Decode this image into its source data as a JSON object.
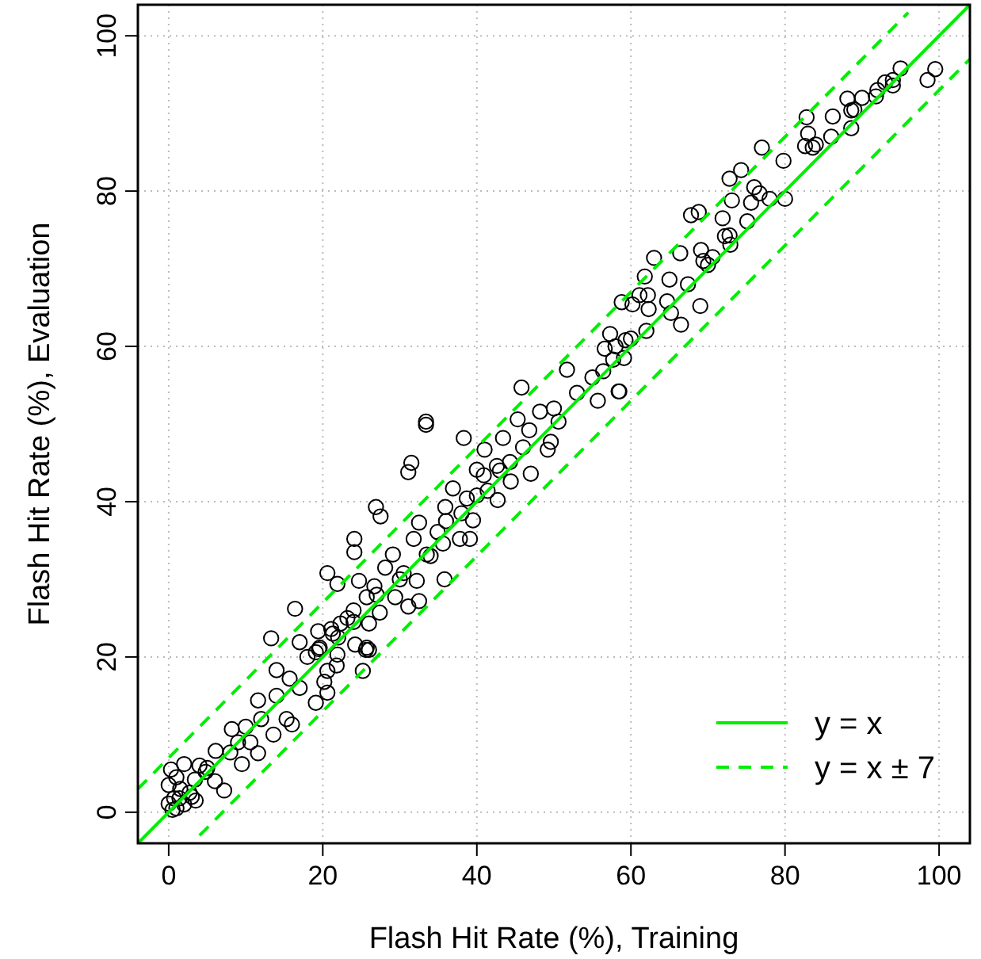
{
  "chart_data": {
    "type": "scatter",
    "xlabel": "Flash Hit Rate (%), Training",
    "ylabel": "Flash Hit Rate (%), Evaluation",
    "xlim": [
      -4,
      104
    ],
    "ylim": [
      -4,
      104
    ],
    "xticks": [
      0,
      20,
      40,
      60,
      80,
      100
    ],
    "yticks": [
      0,
      20,
      40,
      60,
      80,
      100
    ],
    "grid": true,
    "legend": "bottom right",
    "series": [
      {
        "marker": "circle",
        "color": "#000000",
        "x": [
          88.1,
          82.8,
          86.2,
          88.6,
          88.6,
          83.0,
          82.6,
          83.6,
          77.0,
          79.8,
          74.3,
          72.8,
          76.0,
          76.7,
          80.0,
          73.1,
          75.6,
          67.8,
          68.8,
          71.9,
          75.1,
          72.2,
          72.8,
          72.9,
          66.4,
          69.1,
          63.0,
          69.4,
          70.6,
          65.0,
          61.8,
          67.4,
          58.8,
          61.1,
          62.2,
          60.2,
          64.7,
          62.3,
          65.2,
          69.0,
          66.5,
          57.3,
          59.3,
          56.6,
          59.1,
          57.7,
          58.5,
          33.4,
          33.4,
          45.8,
          51.7,
          56.4,
          58.4,
          55.7,
          48.2,
          45.3,
          50.6,
          46.8,
          49.6,
          49.2,
          38.3,
          41.0,
          43.4,
          31.5,
          31.1,
          44.3,
          42.6,
          40.0,
          47.0,
          44.4,
          40.9,
          36.9,
          41.4,
          42.7,
          38.7,
          35.9,
          26.9,
          27.5,
          39.5,
          32.5,
          31.8,
          34.9,
          37.8,
          39.1,
          24.1,
          24.1,
          35.6,
          29.1,
          33.5,
          28.1,
          30.5,
          20.6,
          24.7,
          32.2,
          35.8,
          21.9,
          26.7,
          29.4,
          25.7,
          24.0,
          31.1,
          32.5,
          27.4,
          22.3,
          26.0,
          21.3,
          25.7,
          26.0,
          19.6,
          21.9,
          20.6,
          20.2,
          20.6,
          13.3,
          17.0,
          16.4,
          19.4,
          19.1,
          24.2,
          25.6,
          14.0,
          15.7,
          19.1,
          11.6,
          8.2,
          15.3,
          16.0,
          13.6,
          10.6,
          6.1,
          2.0,
          7.2,
          2.7,
          0.7,
          0.0,
          3.4,
          4.8,
          9.5,
          11.6,
          25.2,
          21.8,
          21.1,
          23.2,
          1.4,
          0.0,
          1.0,
          0.5,
          1.0,
          2.0,
          3.0,
          1.5,
          0.3,
          4.0,
          5.0,
          3.5,
          6.0,
          8.0,
          9.0,
          12.0,
          10.0,
          14.0,
          17.0,
          18.0,
          19.5,
          22.0,
          24.0,
          27.0,
          30.0,
          34.0,
          36.0,
          38.0,
          40.0,
          43.0,
          46.0,
          50.0,
          53.0,
          55.0,
          58.0,
          60.0,
          62.0,
          70.0,
          78.0,
          84.0,
          86.0,
          90.0,
          92.0,
          94.0,
          95.0,
          93.0,
          89.0,
          98.5,
          99.5,
          94.0,
          91.8
        ],
        "values": [
          91.9,
          89.5,
          89.6,
          90.4,
          88.1,
          87.4,
          85.8,
          85.6,
          85.6,
          83.9,
          82.7,
          81.6,
          80.5,
          79.7,
          79.0,
          78.8,
          78.5,
          76.9,
          77.3,
          76.5,
          76.1,
          74.2,
          74.3,
          73.1,
          72.0,
          72.4,
          71.4,
          71.0,
          71.5,
          68.6,
          69.0,
          68.0,
          65.7,
          66.6,
          66.6,
          65.4,
          65.8,
          64.8,
          64.3,
          65.2,
          62.8,
          61.6,
          60.8,
          59.7,
          58.5,
          58.3,
          54.2,
          49.9,
          50.3,
          54.7,
          57.0,
          56.8,
          54.2,
          53.0,
          51.6,
          50.6,
          50.3,
          49.2,
          47.7,
          46.7,
          48.2,
          46.7,
          48.2,
          45.0,
          43.8,
          45.1,
          44.6,
          44.1,
          43.6,
          42.6,
          43.4,
          41.7,
          41.4,
          40.2,
          40.4,
          39.3,
          39.3,
          38.1,
          37.6,
          37.3,
          35.2,
          36.1,
          35.2,
          35.2,
          35.2,
          33.5,
          34.6,
          33.2,
          33.2,
          31.5,
          30.8,
          30.8,
          29.8,
          29.8,
          30.0,
          29.4,
          29.1,
          27.7,
          27.7,
          26.0,
          26.5,
          27.2,
          25.7,
          24.3,
          24.3,
          23.0,
          21.2,
          20.9,
          21.2,
          20.3,
          18.2,
          16.8,
          15.4,
          22.4,
          21.9,
          26.2,
          23.3,
          20.6,
          21.6,
          20.9,
          18.3,
          17.2,
          14.1,
          14.4,
          10.7,
          12.0,
          11.3,
          10.0,
          9.0,
          7.9,
          6.2,
          2.8,
          2.5,
          1.8,
          1.1,
          4.2,
          5.2,
          6.2,
          7.6,
          18.2,
          18.9,
          23.6,
          25.0,
          1.8,
          3.5,
          4.5,
          0.3,
          0.5,
          1.0,
          2.0,
          3.0,
          5.5,
          6.0,
          5.7,
          1.5,
          4.0,
          7.7,
          9.0,
          12.0,
          11.0,
          15.0,
          16.0,
          20.0,
          21.0,
          22.5,
          24.5,
          28.0,
          30.0,
          33.0,
          37.5,
          38.5,
          40.8,
          44.0,
          47.0,
          52.0,
          54.0,
          56.0,
          60.0,
          61.0,
          62.0,
          70.5,
          79.0,
          86.0,
          87.0,
          92.0,
          93.0,
          94.3,
          95.8,
          94.0,
          90.5,
          94.3,
          95.7,
          93.6,
          92.2
        ]
      },
      {
        "type": "line",
        "name": "y = x",
        "color": "#00ee00",
        "line_style": "solid",
        "x": [
          -4,
          104
        ],
        "values": [
          -4,
          104
        ]
      },
      {
        "type": "line",
        "name": "y = x ± 7",
        "color": "#00ee00",
        "line_style": "dashed",
        "x": [
          -4,
          96
        ],
        "values": [
          3,
          103
        ]
      },
      {
        "type": "line",
        "color": "#00ee00",
        "line_style": "dashed",
        "x": [
          4,
          104
        ],
        "values": [
          -3,
          97
        ]
      }
    ]
  }
}
